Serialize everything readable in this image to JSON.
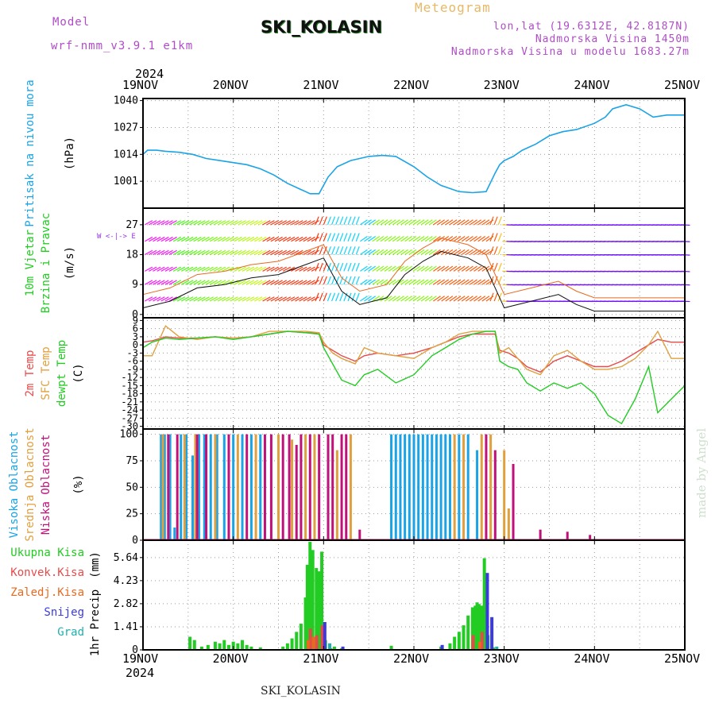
{
  "header": {
    "model_label": "Model",
    "model_name": "wrf-nmm_v3.9.1 e1km",
    "title": "SKI_KOLASIN",
    "subtitle": "Meteogram",
    "location": "lon,lat (19.6312E, 42.8187N)",
    "elevation": "Nadmorska Visina 1450m",
    "model_elevation": "Nadmorska Visina u modelu 1683.27m"
  },
  "time_axis": {
    "year": "2024",
    "labels": [
      "19NOV",
      "20NOV",
      "21NOV",
      "22NOV",
      "23NOV",
      "24NOV",
      "25NOV"
    ]
  },
  "footer": {
    "station": "SKI_KOLASIN",
    "credit": "made by Angel"
  },
  "colors": {
    "pressure": "#1aa3e6",
    "temp": "#e84a4a",
    "sfc": "#e0a040",
    "dew": "#22cc22",
    "high_cloud": "#1aa3e6",
    "mid_cloud": "#e0a040",
    "low_cloud": "#c0117a",
    "total": "#22cc22",
    "conv": "#e84a4a",
    "frz": "#e86a20",
    "snow": "#3a3ae0",
    "hail": "#20b0b0",
    "wind_arrow": "#9933ee"
  },
  "chart_data": [
    {
      "type": "line",
      "ylabel_lines": [
        "Pritisak na nivou mora",
        "(hPa)"
      ],
      "yticks": [
        1001,
        1014,
        1027,
        1040
      ],
      "ylim": [
        988,
        1041
      ],
      "x_unit": "days since 19NOV 00:00",
      "x": [
        0,
        0.05,
        0.15,
        0.25,
        0.4,
        0.55,
        0.7,
        0.85,
        1,
        1.15,
        1.3,
        1.45,
        1.6,
        1.75,
        1.85,
        1.95,
        2.05,
        2.15,
        2.3,
        2.5,
        2.65,
        2.8,
        3,
        3.15,
        3.3,
        3.5,
        3.65,
        3.8,
        3.9,
        3.95,
        4.0,
        4.1,
        4.2,
        4.35,
        4.5,
        4.65,
        4.8,
        5,
        5.12,
        5.2,
        5.35,
        5.5,
        5.65,
        5.8,
        6
      ],
      "series": [
        {
          "values": [
            1014,
            1016,
            1016,
            1015.5,
            1015,
            1014,
            1012,
            1011,
            1010,
            1009,
            1007,
            1004,
            1000,
            997,
            995,
            995,
            1003,
            1008,
            1011,
            1013,
            1013.5,
            1013,
            1008,
            1003,
            999,
            996,
            995.5,
            996,
            1005,
            1009,
            1011,
            1013,
            1016,
            1019,
            1023,
            1025,
            1026,
            1029,
            1032,
            1036,
            1038,
            1036,
            1032,
            1033,
            1033
          ]
        }
      ]
    },
    {
      "type": "line",
      "ylabel_lines": [
        "10m Vjetar",
        "Brzina i Pravac",
        "(m/s)"
      ],
      "yticks": [
        0,
        9,
        18,
        27
      ],
      "ylim": [
        -1,
        32
      ],
      "x": [
        0,
        0.3,
        0.6,
        0.9,
        1.2,
        1.5,
        1.8,
        2.0,
        2.2,
        2.4,
        2.7,
        2.9,
        3.1,
        3.3,
        3.6,
        3.8,
        4.0,
        4.3,
        4.6,
        4.8,
        5.0,
        5.5,
        6.0
      ],
      "series": [
        {
          "values": [
            2,
            4,
            8,
            9,
            11,
            12,
            15,
            17,
            7,
            3,
            5,
            12,
            16,
            19,
            17,
            14,
            2,
            4,
            6,
            3,
            1,
            1,
            1
          ]
        }
      ]
    },
    {
      "type": "line",
      "ylabel_lines": [
        "2m Temp",
        "SFC Temp",
        "dewpt Temp",
        "(C)"
      ],
      "yticks": [
        9,
        6,
        3,
        0,
        -3,
        -6,
        -9,
        -12,
        -15,
        -18,
        -21,
        -24,
        -27,
        -30
      ],
      "ylim": [
        -31,
        10
      ],
      "x": [
        0,
        0.1,
        0.25,
        0.4,
        0.6,
        0.8,
        1,
        1.2,
        1.4,
        1.6,
        1.8,
        1.95,
        2.0,
        2.1,
        2.2,
        2.35,
        2.45,
        2.6,
        2.8,
        3.0,
        3.2,
        3.35,
        3.5,
        3.65,
        3.8,
        3.9,
        3.95,
        4.05,
        4.15,
        4.25,
        4.4,
        4.55,
        4.7,
        4.85,
        5,
        5.15,
        5.3,
        5.45,
        5.6,
        5.7,
        5.85,
        6
      ],
      "series": [
        {
          "name": "2m Temp",
          "values": [
            1,
            1.5,
            3,
            2.5,
            2.5,
            3,
            2.5,
            3,
            4,
            5,
            4.5,
            4.5,
            0,
            -2,
            -4,
            -6,
            -4,
            -3,
            -4,
            -3,
            -1,
            1,
            3,
            4,
            4,
            4,
            -2,
            -3,
            -5,
            -8,
            -10,
            -6,
            -4,
            -6,
            -8,
            -8,
            -6,
            -3,
            0,
            2,
            1,
            1
          ]
        },
        {
          "name": "SFC Temp",
          "values": [
            -4,
            -4,
            7,
            3,
            2,
            3,
            2.5,
            3,
            5,
            5,
            5,
            4.5,
            1,
            -3,
            -5,
            -7,
            -1,
            -3,
            -4,
            -5,
            -1,
            1,
            4,
            5,
            5,
            5,
            -3,
            -1,
            -5,
            -9,
            -11,
            -4,
            -2,
            -6,
            -9,
            -9,
            -8,
            -5,
            0,
            5,
            -5,
            -5
          ]
        },
        {
          "name": "dewpt Temp",
          "values": [
            -1,
            1,
            2.5,
            2,
            2.5,
            3,
            2,
            3,
            4,
            5,
            4.5,
            4,
            -1,
            -7,
            -13,
            -15,
            -11,
            -9,
            -14,
            -11,
            -4,
            -1,
            2,
            4,
            5,
            5,
            -6,
            -8,
            -9,
            -14,
            -17,
            -14,
            -16,
            -14,
            -18,
            -26,
            -29,
            -20,
            -8,
            -25,
            -20,
            -15
          ]
        }
      ]
    },
    {
      "type": "bar",
      "ylabel_lines": [
        "Visoka Oblacnost",
        "Srednja Oblacnost",
        "Niska Oblacnost",
        "(%)"
      ],
      "yticks": [
        0,
        25,
        50,
        75,
        100
      ],
      "ylim": [
        0,
        105
      ],
      "series": [
        {
          "name": "Visoka Oblacnost",
          "x": [
            0.2,
            0.24,
            0.3,
            0.35,
            0.42,
            0.48,
            0.55,
            0.62,
            0.68,
            0.75,
            0.82,
            0.9,
            1.0,
            1.1,
            1.2,
            1.3,
            2.75,
            2.8,
            2.85,
            2.9,
            2.95,
            3.0,
            3.05,
            3.1,
            3.15,
            3.2,
            3.25,
            3.3,
            3.35,
            3.4,
            3.5,
            3.6,
            3.7
          ],
          "values": [
            100,
            100,
            100,
            12,
            100,
            100,
            80,
            100,
            100,
            100,
            100,
            100,
            100,
            100,
            100,
            100,
            100,
            100,
            100,
            100,
            100,
            100,
            100,
            100,
            100,
            100,
            100,
            100,
            100,
            100,
            100,
            100,
            85
          ]
        },
        {
          "name": "Srednja Oblacnost",
          "x": [
            0.22,
            0.46,
            0.58,
            0.8,
            1.05,
            1.25,
            1.5,
            1.65,
            1.8,
            1.9,
            2.15,
            2.3,
            3.45,
            3.55,
            3.75,
            3.85,
            4.0,
            4.05
          ],
          "values": [
            100,
            100,
            100,
            100,
            100,
            100,
            100,
            95,
            100,
            100,
            85,
            100,
            100,
            100,
            100,
            100,
            85,
            30
          ]
        },
        {
          "name": "Niska Oblacnost",
          "x": [
            0.28,
            0.38,
            0.6,
            0.7,
            0.95,
            1.15,
            1.35,
            1.42,
            1.55,
            1.62,
            1.7,
            1.75,
            1.85,
            1.95,
            2.05,
            2.1,
            2.2,
            2.25,
            2.4,
            3.8,
            3.9,
            4.1,
            4.4,
            4.7,
            4.95
          ],
          "values": [
            100,
            100,
            100,
            100,
            100,
            100,
            100,
            100,
            100,
            100,
            90,
            100,
            100,
            100,
            100,
            100,
            100,
            100,
            10,
            100,
            85,
            72,
            10,
            8,
            5
          ]
        }
      ]
    },
    {
      "type": "bar",
      "ylabel_lines": [
        "1hr Precip",
        "(mm)"
      ],
      "legend_items": [
        "Ukupna Kisa",
        "Konvek.Kisa",
        "Zaledj.Kisa",
        "Snijeg",
        "Grad"
      ],
      "yticks": [
        0,
        1.41,
        2.82,
        4.23,
        5.64
      ],
      "ylim": [
        0,
        6.7
      ],
      "series": [
        {
          "name": "Ukupna Kisa",
          "x": [
            0.52,
            0.57,
            0.65,
            0.72,
            0.8,
            0.85,
            0.9,
            0.95,
            1.0,
            1.05,
            1.1,
            1.15,
            1.2,
            1.3,
            1.55,
            1.6,
            1.65,
            1.7,
            1.75,
            1.8,
            1.82,
            1.85,
            1.88,
            1.92,
            1.95,
            1.98,
            2.02,
            2.08,
            2.12,
            2.2,
            2.75,
            3.3,
            3.4,
            3.45,
            3.5,
            3.55,
            3.6,
            3.65,
            3.68,
            3.7,
            3.72,
            3.75,
            3.78,
            3.82,
            3.88
          ],
          "values": [
            0.8,
            0.6,
            0.2,
            0.3,
            0.5,
            0.4,
            0.6,
            0.3,
            0.5,
            0.4,
            0.6,
            0.3,
            0.2,
            0.15,
            0.2,
            0.4,
            0.7,
            1.1,
            1.6,
            3.2,
            5.2,
            6.6,
            6.1,
            5.0,
            4.8,
            6.0,
            0.6,
            0.1,
            0.2,
            0.1,
            0.25,
            0.2,
            0.4,
            0.8,
            1.1,
            1.5,
            2.1,
            2.6,
            2.7,
            2.9,
            2.8,
            2.7,
            5.6,
            0.9,
            0.15
          ]
        },
        {
          "name": "Konvek.Kisa",
          "x": [
            1.85,
            1.92,
            1.98,
            3.65,
            3.75
          ],
          "values": [
            1.3,
            0.9,
            1.5,
            0.9,
            1.1
          ]
        },
        {
          "name": "Zaledj.Kisa",
          "x": [
            1.82,
            1.88,
            3.72
          ],
          "values": [
            0.6,
            0.8,
            0.5
          ]
        },
        {
          "name": "Snijeg",
          "x": [
            2.0,
            2.2,
            3.3,
            3.8,
            3.85
          ],
          "values": [
            1.7,
            0.2,
            0.3,
            4.7,
            2.0
          ]
        },
        {
          "name": "Grad",
          "x": [
            2.05,
            3.9
          ],
          "values": [
            0.4,
            0.2
          ]
        }
      ]
    }
  ]
}
